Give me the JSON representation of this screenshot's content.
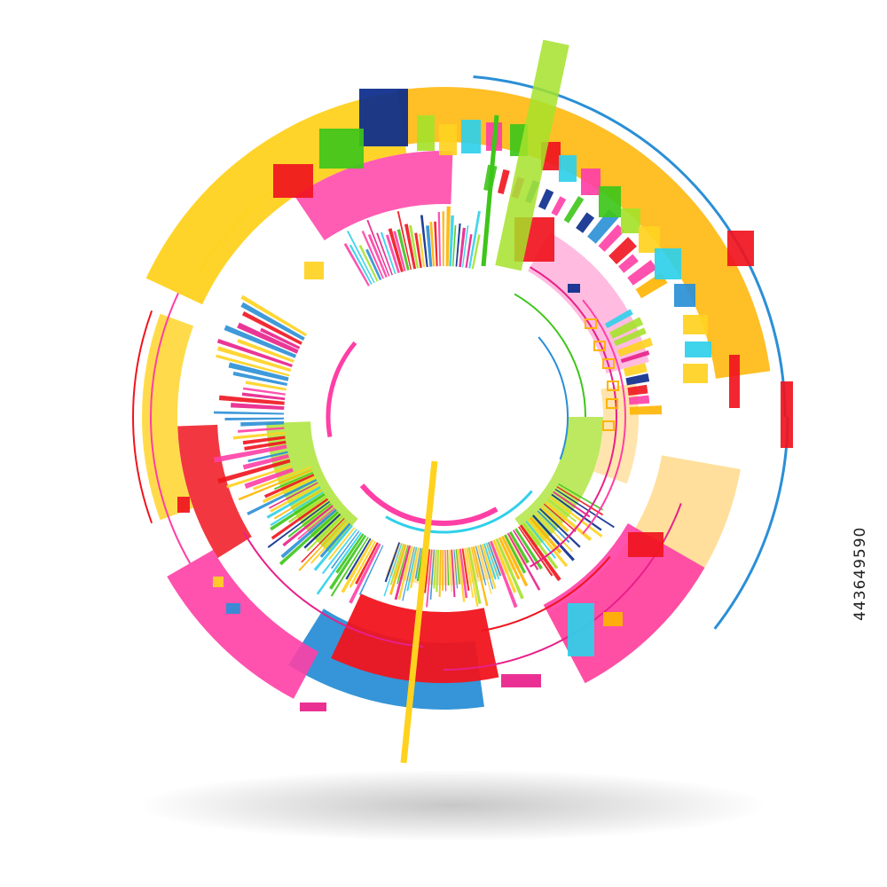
{
  "image": {
    "stock_id": "443649590",
    "subject": "abstract-circular-infographic-rings",
    "background_color": "#ffffff",
    "palette": {
      "yellow": "#ffd21f",
      "orange": "#ffb400",
      "pink": "#ff3fa6",
      "magenta": "#e8208a",
      "red": "#f0141e",
      "green": "#3ec51a",
      "lime": "#a6e22a",
      "blue": "#2a8fd6",
      "navy": "#0a2a8c",
      "cyan": "#2fd0ea",
      "peach": "#ffd98a"
    }
  }
}
